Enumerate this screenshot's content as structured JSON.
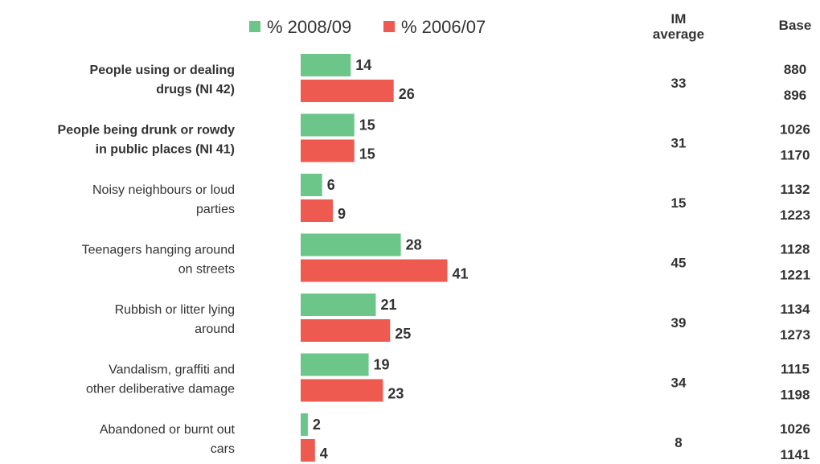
{
  "chart_data": {
    "type": "bar",
    "orientation": "horizontal",
    "legend_position": "top",
    "categories": [
      {
        "lines": [
          "People using or dealing",
          "drugs (NI 42)"
        ],
        "bold": true
      },
      {
        "lines": [
          "People being drunk or rowdy",
          "in public places (NI 41)"
        ],
        "bold": true
      },
      {
        "lines": [
          "Noisy neighbours or loud",
          "parties"
        ],
        "bold": false
      },
      {
        "lines": [
          "Teenagers hanging around",
          "on streets"
        ],
        "bold": false
      },
      {
        "lines": [
          "Rubbish or litter lying",
          "around"
        ],
        "bold": false
      },
      {
        "lines": [
          "Vandalism, graffiti and",
          "other deliberative damage"
        ],
        "bold": false
      },
      {
        "lines": [
          "Abandoned or burnt out",
          "cars"
        ],
        "bold": false
      }
    ],
    "series": [
      {
        "name": "% 2008/09",
        "color": "#6cc68a",
        "values": [
          14,
          15,
          6,
          28,
          21,
          19,
          2
        ]
      },
      {
        "name": "% 2006/07",
        "color": "#ef5a50",
        "values": [
          26,
          15,
          9,
          41,
          25,
          23,
          4
        ]
      }
    ],
    "im_average": {
      "header_lines": [
        "IM",
        "average"
      ],
      "values": [
        "33",
        "31",
        "15",
        "45",
        "39",
        "34",
        "8"
      ]
    },
    "base": {
      "header": "Base",
      "pairs": [
        [
          "880",
          "896"
        ],
        [
          "1026",
          "1170"
        ],
        [
          "1132",
          "1223"
        ],
        [
          "1128",
          "1221"
        ],
        [
          "1134",
          "1273"
        ],
        [
          "1115",
          "1198"
        ],
        [
          "1026",
          "1141"
        ]
      ]
    }
  }
}
